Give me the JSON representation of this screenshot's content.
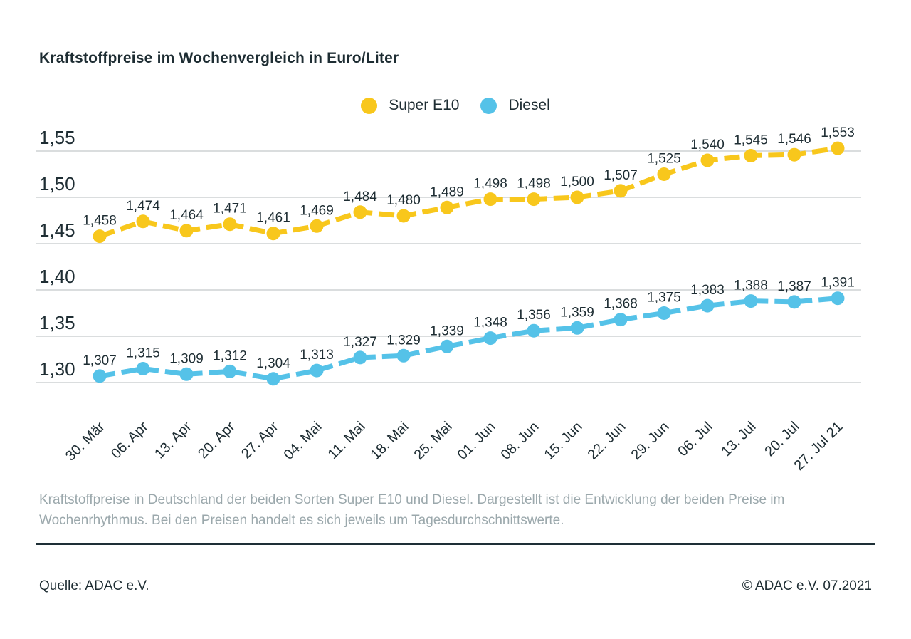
{
  "title": "Kraftstoffpreise im Wochenvergleich in Euro/Liter",
  "legend": [
    {
      "label": "Super E10",
      "color": "#F8C71C"
    },
    {
      "label": "Diesel",
      "color": "#55C2E8"
    }
  ],
  "chart_data": {
    "type": "line",
    "title": "Kraftstoffpreise im Wochenvergleich in Euro/Liter",
    "categories": [
      "30. Mär",
      "06. Apr",
      "13. Apr",
      "20. Apr",
      "27. Apr",
      "04. Mai",
      "11. Mai",
      "18. Mai",
      "25. Mai",
      "01. Jun",
      "08. Jun",
      "15. Jun",
      "22. Jun",
      "29. Jun",
      "06. Jul",
      "13. Jul",
      "20. Jul",
      "27. Jul 21"
    ],
    "series": [
      {
        "name": "Super E10",
        "color": "#F8C71C",
        "values": [
          1.458,
          1.474,
          1.464,
          1.471,
          1.461,
          1.469,
          1.484,
          1.48,
          1.489,
          1.498,
          1.498,
          1.5,
          1.507,
          1.525,
          1.54,
          1.545,
          1.546,
          1.553
        ]
      },
      {
        "name": "Diesel",
        "color": "#55C2E8",
        "values": [
          1.307,
          1.315,
          1.309,
          1.312,
          1.304,
          1.313,
          1.327,
          1.329,
          1.339,
          1.348,
          1.356,
          1.359,
          1.368,
          1.375,
          1.383,
          1.388,
          1.387,
          1.391
        ]
      }
    ],
    "ylabel": "Euro/Liter",
    "xlabel": "",
    "ylim": [
      1.3,
      1.55
    ],
    "yticks": [
      1.55,
      1.5,
      1.45,
      1.4,
      1.35,
      1.3
    ],
    "ytick_labels": [
      "1,55",
      "1,50",
      "1,45",
      "1,40",
      "1,35",
      "1,30"
    ],
    "grid": true,
    "legend_position": "top-center",
    "value_labels": true,
    "decimal_separator": ","
  },
  "description": "Kraftstoffpreise in Deutschland der beiden Sorten Super E10 und Diesel. Dargestellt ist die Entwicklung der beiden Preise im Wochenrhythmus. Bei den Preisen handelt es sich jeweils um Tagesdurchschnittswerte.",
  "source": "Quelle: ADAC e.V.",
  "copyright": "© ADAC e.V. 07.2021",
  "colors": {
    "accent_yellow": "#F8C71C",
    "accent_blue": "#55C2E8",
    "text_dark": "#1E2D33",
    "text_gray": "#9BA8AC",
    "gridline": "#DADDDE",
    "divider": "#1E2F36"
  }
}
